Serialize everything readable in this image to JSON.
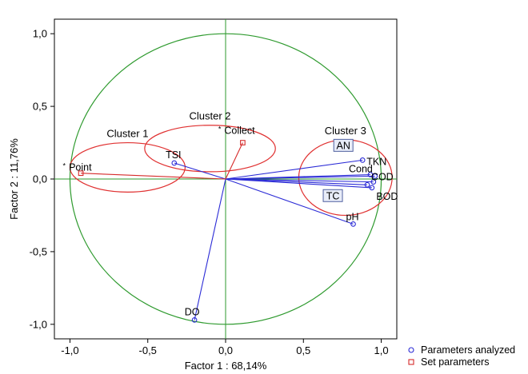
{
  "chart_data": {
    "type": "scatter",
    "xlabel": "Factor 1 : 68,14%",
    "ylabel": "Factor 2 : 11,76%",
    "xlim": [
      -1.1,
      1.1
    ],
    "ylim": [
      -1.1,
      1.1
    ],
    "xticks": [
      {
        "v": -1.0,
        "label": "-1,0"
      },
      {
        "v": -0.5,
        "label": "-0,5"
      },
      {
        "v": 0.0,
        "label": "0,0"
      },
      {
        "v": 0.5,
        "label": "0,5"
      },
      {
        "v": 1.0,
        "label": "1,0"
      }
    ],
    "yticks": [
      {
        "v": 1.0,
        "label": "1,0"
      },
      {
        "v": 0.5,
        "label": "0,5"
      },
      {
        "v": 0.0,
        "label": "0,0"
      },
      {
        "v": -0.5,
        "label": "-0,5"
      },
      {
        "v": -1.0,
        "label": "-1,0"
      }
    ],
    "grid": false,
    "unit_circle": {
      "radius": 1.0,
      "color": "#2e9a2e"
    },
    "legend": {
      "position": "bottom-right",
      "entries": [
        {
          "name": "Parameters analyzed",
          "marker": "circle",
          "color": "#2b2bd6"
        },
        {
          "name": "Set parameters",
          "marker": "square",
          "color": "#d62b2b"
        }
      ]
    },
    "series": [
      {
        "name": "Parameters analyzed",
        "color": "#2b2bd6",
        "marker": "circle",
        "points": [
          {
            "label": "TSI",
            "x": -0.33,
            "y": 0.11
          },
          {
            "label": "AN",
            "x": 0.88,
            "y": 0.13,
            "boxed": true
          },
          {
            "label": "Cond",
            "x": 0.93,
            "y": 0.03
          },
          {
            "label": "TKN",
            "x": 0.96,
            "y": 0.02
          },
          {
            "label": "COD",
            "x": 0.95,
            "y": -0.02
          },
          {
            "label": "BOD",
            "x": 0.94,
            "y": -0.06
          },
          {
            "label": "TC",
            "x": 0.91,
            "y": -0.04,
            "boxed": true
          },
          {
            "label": "pH",
            "x": 0.82,
            "y": -0.31
          },
          {
            "label": "DO",
            "x": -0.2,
            "y": -0.97
          }
        ]
      },
      {
        "name": "Set parameters",
        "color": "#d62b2b",
        "marker": "square",
        "points": [
          {
            "label": "Point",
            "x": -0.93,
            "y": 0.04
          },
          {
            "label": "Collect",
            "x": 0.11,
            "y": 0.25
          }
        ]
      }
    ],
    "clusters": [
      {
        "label": "Cluster 1",
        "cx": -0.63,
        "cy": 0.08,
        "rx": 0.37,
        "ry": 0.17
      },
      {
        "label": "Cluster 2",
        "cx": -0.1,
        "cy": 0.21,
        "rx": 0.42,
        "ry": 0.16
      },
      {
        "label": "Cluster 3",
        "cx": 0.77,
        "cy": 0.01,
        "rx": 0.3,
        "ry": 0.26
      }
    ],
    "cluster_color": "#e03030"
  }
}
